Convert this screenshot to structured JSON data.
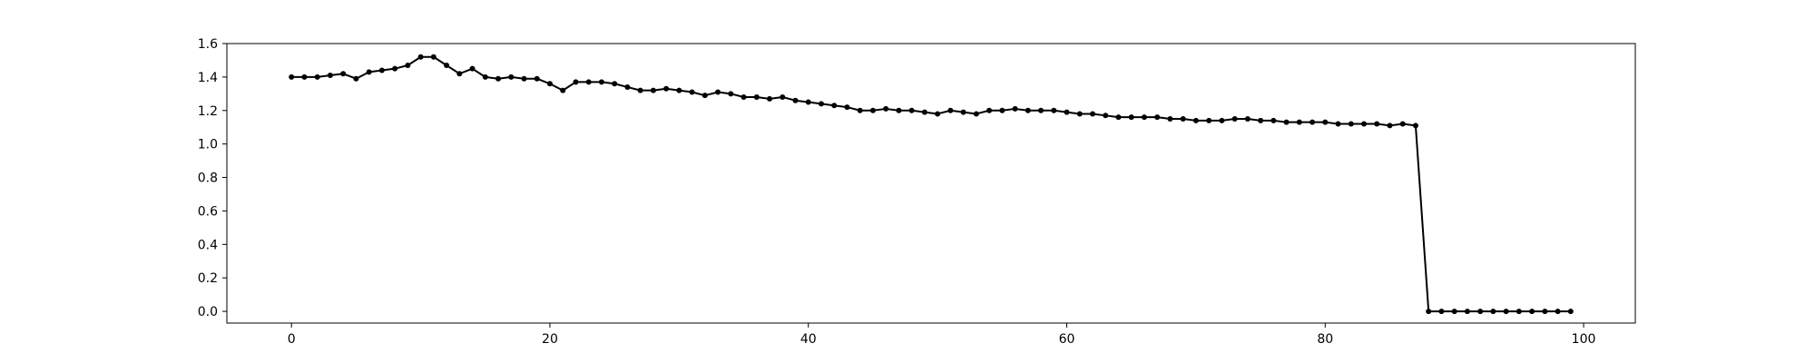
{
  "chart_data": {
    "type": "line",
    "title": "",
    "xlabel": "",
    "ylabel": "",
    "xlim": [
      -5,
      104
    ],
    "ylim": [
      -0.07,
      1.6
    ],
    "xticks": [
      0,
      20,
      40,
      60,
      80,
      100
    ],
    "xtick_labels": [
      "0",
      "20",
      "40",
      "60",
      "80",
      "100"
    ],
    "yticks": [
      0.0,
      0.2,
      0.4,
      0.6,
      0.8,
      1.0,
      1.2,
      1.4,
      1.6
    ],
    "ytick_labels": [
      "0.0",
      "0.2",
      "0.4",
      "0.6",
      "0.8",
      "1.0",
      "1.2",
      "1.4",
      "1.6"
    ],
    "grid": false,
    "legend": "none",
    "series": [
      {
        "color": "#000000",
        "marker": "circle",
        "x": [
          0,
          1,
          2,
          3,
          4,
          5,
          6,
          7,
          8,
          9,
          10,
          11,
          12,
          13,
          14,
          15,
          16,
          17,
          18,
          19,
          20,
          21,
          22,
          23,
          24,
          25,
          26,
          27,
          28,
          29,
          30,
          31,
          32,
          33,
          34,
          35,
          36,
          37,
          38,
          39,
          40,
          41,
          42,
          43,
          44,
          45,
          46,
          47,
          48,
          49,
          50,
          51,
          52,
          53,
          54,
          55,
          56,
          57,
          58,
          59,
          60,
          61,
          62,
          63,
          64,
          65,
          66,
          67,
          68,
          69,
          70,
          71,
          72,
          73,
          74,
          75,
          76,
          77,
          78,
          79,
          80,
          81,
          82,
          83,
          84,
          85,
          86,
          87,
          88,
          89,
          90,
          91,
          92,
          93,
          94,
          95,
          96,
          97,
          98,
          99
        ],
        "values": [
          1.4,
          1.4,
          1.4,
          1.41,
          1.42,
          1.39,
          1.43,
          1.44,
          1.45,
          1.47,
          1.52,
          1.52,
          1.47,
          1.42,
          1.45,
          1.4,
          1.39,
          1.4,
          1.39,
          1.39,
          1.36,
          1.32,
          1.37,
          1.37,
          1.37,
          1.36,
          1.34,
          1.32,
          1.32,
          1.33,
          1.32,
          1.31,
          1.29,
          1.31,
          1.3,
          1.28,
          1.28,
          1.27,
          1.28,
          1.26,
          1.25,
          1.24,
          1.23,
          1.22,
          1.2,
          1.2,
          1.21,
          1.2,
          1.2,
          1.19,
          1.18,
          1.2,
          1.19,
          1.18,
          1.2,
          1.2,
          1.21,
          1.2,
          1.2,
          1.2,
          1.19,
          1.18,
          1.18,
          1.17,
          1.16,
          1.16,
          1.16,
          1.16,
          1.15,
          1.15,
          1.14,
          1.14,
          1.14,
          1.15,
          1.15,
          1.14,
          1.14,
          1.13,
          1.13,
          1.13,
          1.13,
          1.12,
          1.12,
          1.12,
          1.12,
          1.11,
          1.12,
          1.11,
          0.0,
          0.0,
          0.0,
          0.0,
          0.0,
          0.0,
          0.0,
          0.0,
          0.0,
          0.0,
          0.0,
          0.0
        ]
      }
    ]
  }
}
